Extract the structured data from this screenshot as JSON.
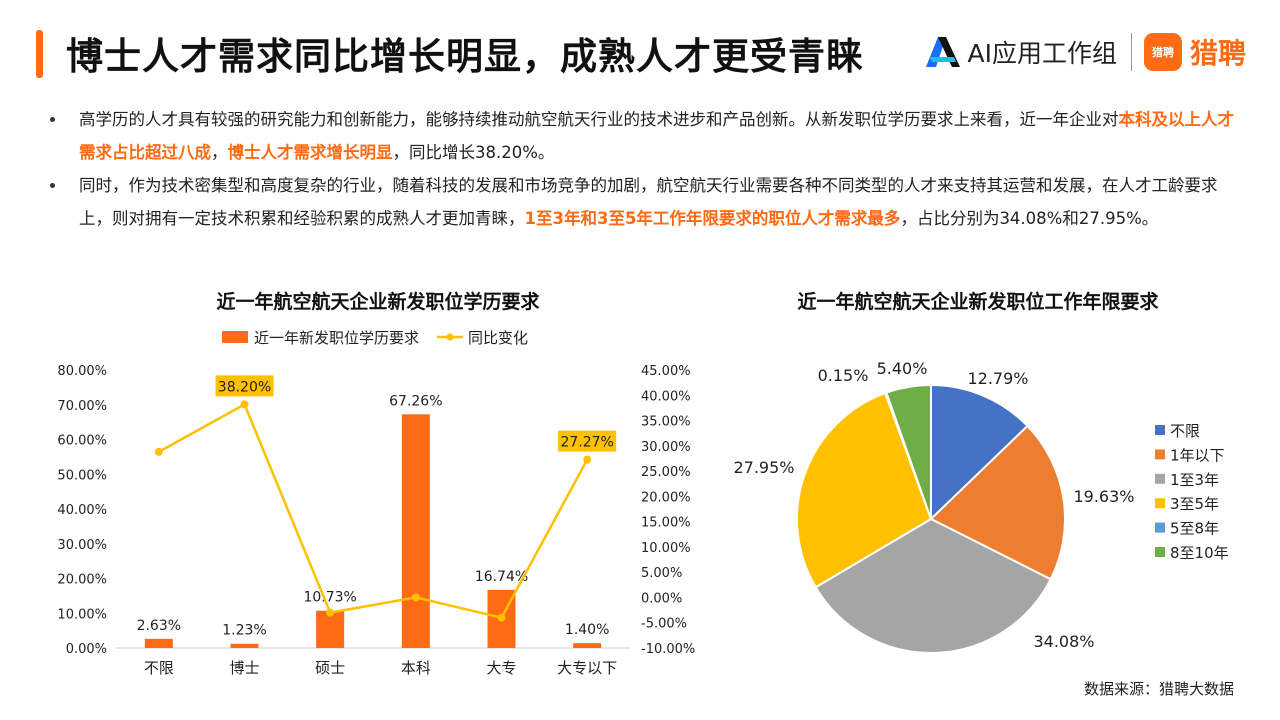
{
  "header": {
    "title": "博士人才需求同比增长明显，成熟人才更受青睐",
    "brand_ai": "AI应用工作组",
    "brand_lp_badge": "猎聘",
    "brand_lp": "猎聘"
  },
  "bullets": [
    {
      "p1": "高学历的人才具有较强的研究能力和创新能力，能够持续推动航空航天行业的技术进步和产品创新。从新发职位学历要求上来看，近一年企业对",
      "h1": "本科及以上人才需求占比超过八成",
      "p2": "，",
      "h2": "博士人才需求增长明显",
      "p3": "，同比增长38.20%。"
    },
    {
      "p1": "同时，作为技术密集型和高度复杂的行业，随着科技的发展和市场竞争的加剧，航空航天行业需要各种不同类型的人才来支持其运营和发展，在人才工龄要求上，则对拥有一定技术积累和经验积累的成熟人才更加青睐，",
      "h1": "1至3年和3至5年工作年限要求的职位人才需求最多",
      "p2": "，占比分别为34.08%和27.95%。"
    }
  ],
  "colors": {
    "accent": "#ff6a14",
    "bar": "#ff6a14",
    "line": "#ffc000",
    "label_bg": "#ffc000"
  },
  "chart_data": [
    {
      "type": "bar",
      "title": "近一年航空航天企业新发职位学历要求",
      "categories": [
        "不限",
        "博士",
        "硕士",
        "本科",
        "大专",
        "大专以下"
      ],
      "series": [
        {
          "name": "近一年新发职位学历要求",
          "type": "bar",
          "axis": "left",
          "values": [
            2.63,
            1.23,
            10.73,
            67.26,
            16.74,
            1.4
          ],
          "labels": [
            "2.63%",
            "1.23%",
            "10.73%",
            "67.26%",
            "16.74%",
            "1.40%"
          ]
        },
        {
          "name": "同比变化",
          "type": "line",
          "axis": "right",
          "values": [
            28.8,
            38.2,
            -3.0,
            0.0,
            -4.0,
            27.27
          ],
          "labels": [
            "",
            "38.20%",
            "",
            "",
            "",
            "27.27%"
          ]
        }
      ],
      "ylim_left": [
        0,
        80
      ],
      "yticks_left": [
        "0.00%",
        "10.00%",
        "20.00%",
        "30.00%",
        "40.00%",
        "50.00%",
        "60.00%",
        "70.00%",
        "80.00%"
      ],
      "ylim_right": [
        -10,
        45
      ],
      "yticks_right": [
        "-10.00%",
        "-5.00%",
        "0.00%",
        "5.00%",
        "10.00%",
        "15.00%",
        "20.00%",
        "25.00%",
        "30.00%",
        "35.00%",
        "40.00%",
        "45.00%"
      ],
      "legend": "top"
    },
    {
      "type": "pie",
      "title": "近一年航空航天企业新发职位工作年限要求",
      "slices": [
        {
          "label": "不限",
          "value": 12.79,
          "display": "12.79%",
          "color": "#4472c4"
        },
        {
          "label": "1年以下",
          "value": 19.63,
          "display": "19.63%",
          "color": "#ed7d31"
        },
        {
          "label": "1至3年",
          "value": 34.08,
          "display": "34.08%",
          "color": "#a5a5a5"
        },
        {
          "label": "3至5年",
          "value": 27.95,
          "display": "27.95%",
          "color": "#ffc000"
        },
        {
          "label": "5至8年",
          "value": 0.15,
          "display": "0.15%",
          "color": "#5b9bd5"
        },
        {
          "label": "8至10年",
          "value": 5.4,
          "display": "5.40%",
          "color": "#70ad47"
        }
      ],
      "legend": "right"
    }
  ],
  "source": "数据来源：猎聘大数据"
}
